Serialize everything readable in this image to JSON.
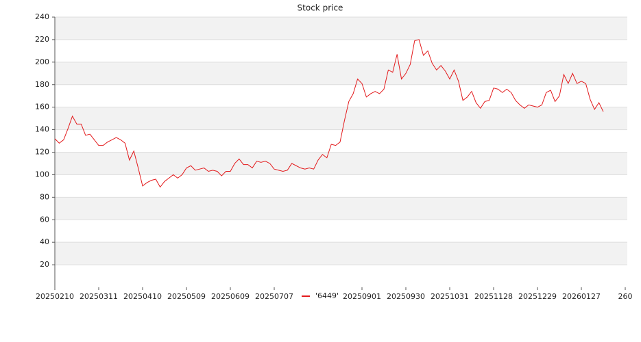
{
  "chart_data": {
    "type": "line",
    "title": "Stock price",
    "categories": [
      "20250210",
      null,
      null,
      null,
      null,
      null,
      null,
      null,
      null,
      null,
      "20250311",
      null,
      null,
      null,
      null,
      null,
      null,
      null,
      null,
      null,
      "20250410",
      null,
      null,
      null,
      null,
      null,
      null,
      null,
      null,
      null,
      "20250509",
      null,
      null,
      null,
      null,
      null,
      null,
      null,
      null,
      null,
      "20250609",
      null,
      null,
      null,
      null,
      null,
      null,
      null,
      null,
      null,
      "20250707",
      null,
      null,
      null,
      null,
      null,
      null,
      null,
      null,
      null,
      null,
      null,
      null,
      null,
      null,
      null,
      null,
      null,
      null,
      null,
      "20250901",
      null,
      null,
      null,
      null,
      null,
      null,
      null,
      null,
      null,
      "20250930",
      null,
      null,
      null,
      null,
      null,
      null,
      null,
      null,
      null,
      "20251031",
      null,
      null,
      null,
      null,
      null,
      null,
      null,
      null,
      null,
      "20251128",
      null,
      null,
      null,
      null,
      null,
      null,
      null,
      null,
      null,
      "20251229",
      null,
      null,
      null,
      null,
      null,
      null,
      null,
      null,
      null,
      "20260127",
      null,
      null,
      null,
      null,
      null,
      null,
      null,
      null,
      null,
      "260"
    ],
    "series": [
      {
        "name": "'6449'",
        "color": "#e31a1c",
        "values": [
          132,
          128,
          131,
          141,
          152,
          145,
          145,
          135,
          136,
          131,
          126,
          126,
          129,
          131,
          133,
          131,
          128,
          113,
          121,
          106,
          90,
          93,
          95,
          96,
          89,
          94,
          97,
          100,
          97,
          100,
          106,
          108,
          104,
          105,
          106,
          103,
          104,
          103,
          99,
          103,
          103,
          110,
          114,
          109,
          109,
          106,
          112,
          111,
          112,
          110,
          105,
          104,
          103,
          104,
          110,
          108,
          106,
          105,
          106,
          105,
          113,
          118,
          115,
          127,
          126,
          129,
          148,
          165,
          172,
          185,
          181,
          169,
          172,
          174,
          172,
          176,
          193,
          191,
          207,
          185,
          190,
          198,
          219,
          220,
          206,
          210,
          199,
          193,
          197,
          192,
          185,
          193,
          183,
          166,
          169,
          174,
          164,
          159,
          165,
          166,
          177,
          176,
          173,
          176,
          173,
          166,
          162,
          159,
          162,
          161,
          160,
          162,
          173,
          175,
          165,
          170,
          189,
          181,
          190,
          181,
          183,
          181,
          167,
          158,
          164,
          156,
          null,
          null,
          null,
          null,
          null
        ]
      }
    ],
    "ylim": [
      0,
      240
    ],
    "yticks": [
      20,
      40,
      60,
      80,
      100,
      120,
      140,
      160,
      180,
      200,
      220,
      240
    ],
    "grid": true,
    "band_color": "#f2f2f2",
    "legend": "bottom"
  }
}
